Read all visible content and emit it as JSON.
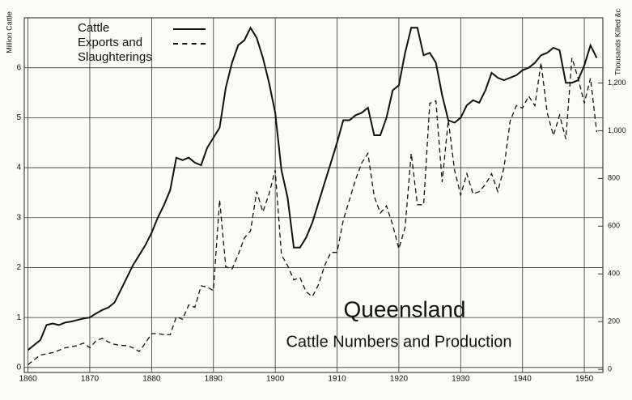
{
  "chart_data": {
    "type": "line",
    "title": "Queensland",
    "subtitle": "Cattle Numbers and Production",
    "ylabel": "Million Cattle",
    "y2label": "Thousands Killed &c",
    "x": [
      1860,
      1861,
      1862,
      1863,
      1864,
      1865,
      1866,
      1867,
      1868,
      1869,
      1870,
      1871,
      1872,
      1873,
      1874,
      1875,
      1876,
      1877,
      1878,
      1879,
      1880,
      1881,
      1882,
      1883,
      1884,
      1885,
      1886,
      1887,
      1888,
      1889,
      1890,
      1891,
      1892,
      1893,
      1894,
      1895,
      1896,
      1897,
      1898,
      1899,
      1900,
      1901,
      1902,
      1903,
      1904,
      1905,
      1906,
      1907,
      1908,
      1909,
      1910,
      1911,
      1912,
      1913,
      1914,
      1915,
      1916,
      1917,
      1918,
      1919,
      1920,
      1921,
      1922,
      1923,
      1924,
      1925,
      1926,
      1927,
      1928,
      1929,
      1930,
      1931,
      1932,
      1933,
      1934,
      1935,
      1936,
      1937,
      1938,
      1939,
      1940,
      1941,
      1942,
      1943,
      1944,
      1945,
      1946,
      1947,
      1948,
      1949,
      1950,
      1951,
      1952
    ],
    "series": [
      {
        "name": "Cattle",
        "color": "#111111",
        "line_style": "solid",
        "values": [
          0.35,
          0.45,
          0.55,
          0.85,
          0.88,
          0.85,
          0.9,
          0.92,
          0.95,
          0.98,
          1.0,
          1.08,
          1.15,
          1.2,
          1.3,
          1.55,
          1.8,
          2.05,
          2.25,
          2.45,
          2.7,
          3.0,
          3.25,
          3.55,
          4.2,
          4.15,
          4.2,
          4.1,
          4.05,
          4.4,
          4.6,
          4.8,
          5.6,
          6.1,
          6.45,
          6.55,
          6.8,
          6.6,
          6.2,
          5.7,
          5.1,
          3.95,
          3.4,
          2.4,
          2.4,
          2.6,
          2.9,
          3.3,
          3.7,
          4.1,
          4.5,
          4.95,
          4.95,
          5.05,
          5.1,
          5.2,
          4.65,
          4.65,
          5.0,
          5.55,
          5.65,
          6.3,
          6.8,
          6.8,
          6.25,
          6.3,
          6.1,
          5.45,
          4.95,
          4.9,
          5.0,
          5.25,
          5.35,
          5.3,
          5.55,
          5.9,
          5.8,
          5.75,
          5.8,
          5.85,
          5.95,
          6.0,
          6.1,
          6.25,
          6.3,
          6.4,
          6.35,
          5.7,
          5.7,
          5.75,
          6.05,
          6.45,
          6.2
        ]
      },
      {
        "name": "Exports and Slaughterings",
        "color": "#111111",
        "line_style": "dashed",
        "axis": "y2",
        "values": [
          20,
          40,
          60,
          65,
          70,
          80,
          90,
          95,
          100,
          110,
          90,
          120,
          130,
          115,
          105,
          100,
          100,
          90,
          75,
          110,
          150,
          150,
          145,
          145,
          220,
          210,
          270,
          260,
          350,
          345,
          330,
          710,
          430,
          420,
          480,
          550,
          580,
          745,
          660,
          735,
          835,
          480,
          435,
          375,
          385,
          325,
          305,
          355,
          435,
          490,
          490,
          625,
          710,
          795,
          865,
          905,
          725,
          655,
          685,
          605,
          505,
          595,
          905,
          690,
          690,
          1115,
          1125,
          785,
          1045,
          835,
          730,
          820,
          735,
          745,
          775,
          820,
          745,
          845,
          1040,
          1105,
          1095,
          1145,
          1105,
          1285,
          1075,
          980,
          1065,
          965,
          1305,
          1220,
          1115,
          1220,
          995
        ]
      }
    ],
    "xlim": [
      1859.4,
      1953
    ],
    "xticks": [
      1860,
      1870,
      1880,
      1890,
      1900,
      1910,
      1920,
      1930,
      1940,
      1950
    ],
    "ylim": [
      -0.1,
      7.0
    ],
    "yticks": [
      0,
      1,
      2,
      3,
      4,
      5,
      6
    ],
    "y2lim": [
      -13,
      1473
    ],
    "y2ticks": [
      0,
      200,
      400,
      600,
      800,
      {
        "value": 1000,
        "label": "1,000"
      },
      {
        "value": 1200,
        "label": "1,200"
      }
    ],
    "grid": true,
    "legend": "upper left"
  }
}
